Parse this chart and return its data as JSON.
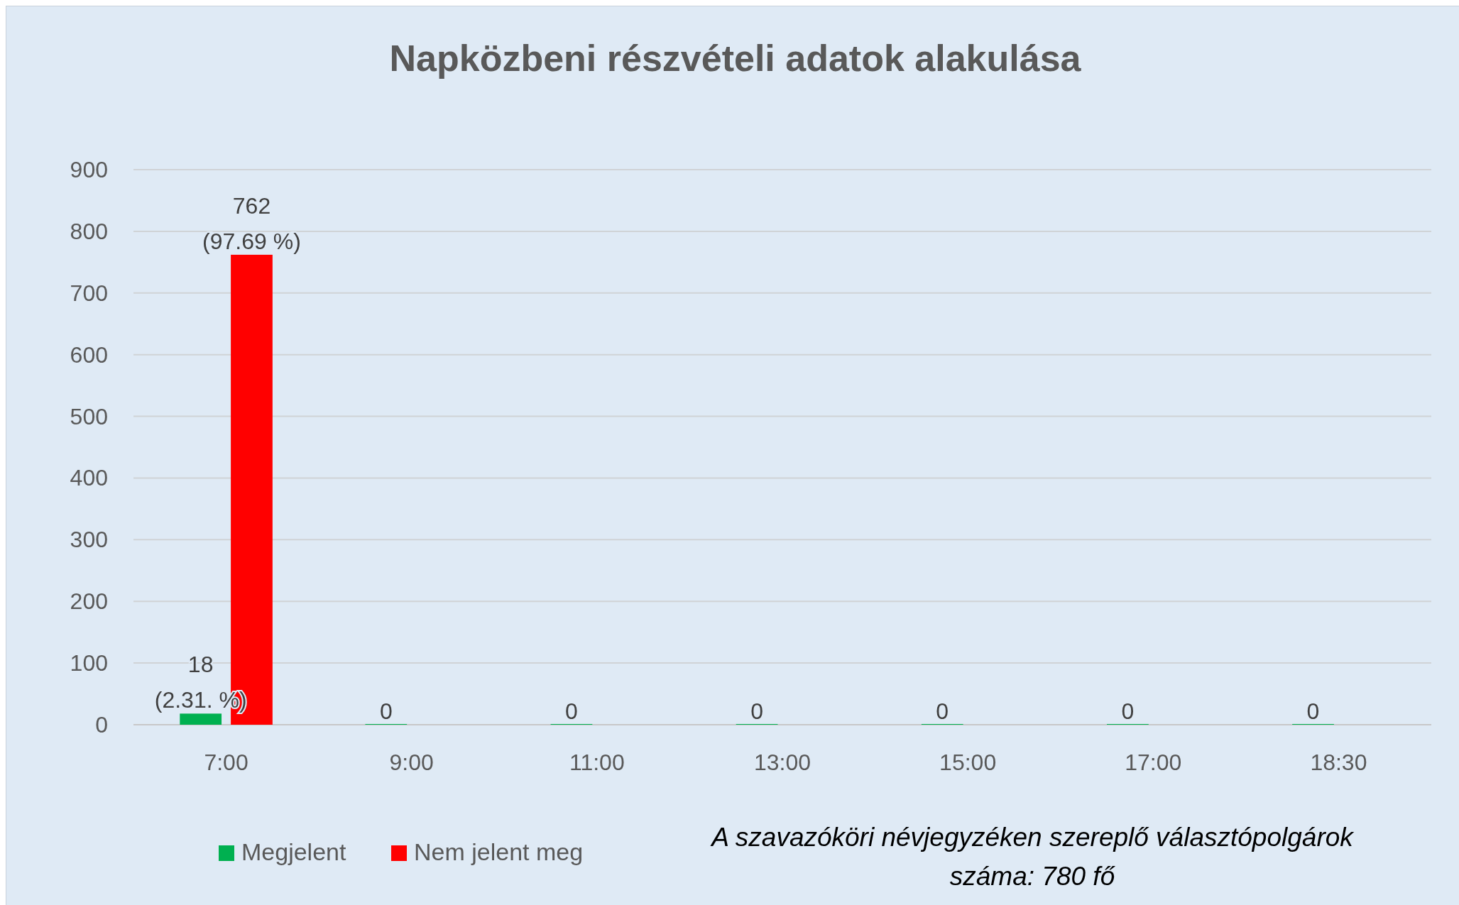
{
  "chart_data": {
    "type": "bar",
    "title": "Napközbeni részvételi adatok alakulása",
    "categories": [
      "7:00",
      "9:00",
      "11:00",
      "13:00",
      "15:00",
      "17:00",
      "18:30"
    ],
    "series": [
      {
        "name": "Megjelent",
        "color": "#00b050",
        "values": [
          18,
          0,
          0,
          0,
          0,
          0,
          0
        ],
        "value_labels": [
          "18\n(2.31. %)",
          "0",
          "0",
          "0",
          "0",
          "0",
          "0"
        ]
      },
      {
        "name": "Nem jelent meg",
        "color": "#ff0000",
        "values": [
          762,
          null,
          null,
          null,
          null,
          null,
          null
        ],
        "value_labels": [
          "762\n(97.69 %)",
          null,
          null,
          null,
          null,
          null,
          null
        ]
      }
    ],
    "ylim": [
      0,
      900
    ],
    "yticks": [
      0,
      100,
      200,
      300,
      400,
      500,
      600,
      700,
      800,
      900
    ],
    "grid": "y",
    "legend": "bottom",
    "annotations": [
      "A szavazóköri névjegyzéken szereplő választópolgárok\nszáma: 780 fő"
    ]
  }
}
